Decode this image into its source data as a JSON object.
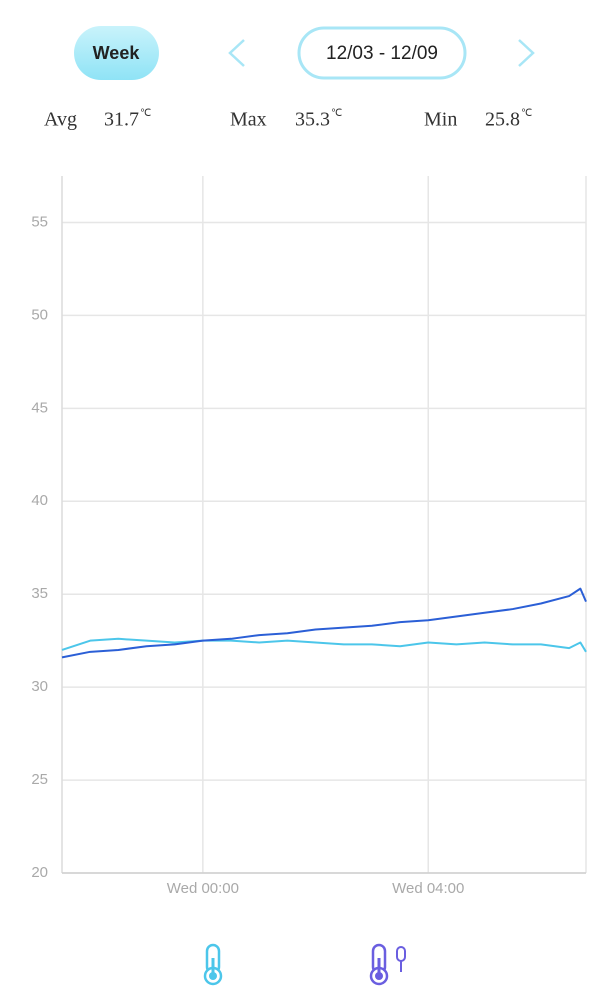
{
  "header": {
    "range_button": "Week",
    "date_range": "12/03 - 12/09"
  },
  "stats": {
    "unit": "℃",
    "items": [
      {
        "label": "Avg",
        "value": 31.7
      },
      {
        "label": "Max",
        "value": 35.3
      },
      {
        "label": "Min",
        "value": 25.8
      }
    ]
  },
  "chart_data": {
    "type": "line",
    "x": [
      -2.5,
      -2,
      -1.5,
      -1,
      -0.5,
      0,
      0.5,
      1,
      1.5,
      2,
      2.5,
      3,
      3.5,
      4,
      4.5,
      5,
      5.5,
      6,
      6.5,
      6.7,
      6.8
    ],
    "series": [
      {
        "color": "#2b5fd6",
        "values": [
          31.6,
          31.9,
          32.0,
          32.2,
          32.3,
          32.5,
          32.6,
          32.8,
          32.9,
          33.1,
          33.2,
          33.3,
          33.5,
          33.6,
          33.8,
          34.0,
          34.2,
          34.5,
          34.9,
          35.3,
          34.6
        ]
      },
      {
        "color": "#4cc6ea",
        "values": [
          32.0,
          32.5,
          32.6,
          32.5,
          32.4,
          32.5,
          32.5,
          32.4,
          32.5,
          32.4,
          32.3,
          32.3,
          32.2,
          32.4,
          32.3,
          32.4,
          32.3,
          32.3,
          32.1,
          32.4,
          31.9
        ]
      }
    ],
    "xlim": [
      -2.5,
      6.8
    ],
    "xticks": [
      {
        "value": 0,
        "label": "Wed 00:00"
      },
      {
        "value": 4,
        "label": "Wed 04:00"
      }
    ],
    "ylim": [
      20,
      57.5
    ],
    "yticks": [
      20,
      25,
      30,
      35,
      40,
      45,
      50,
      55
    ],
    "grid": true
  }
}
